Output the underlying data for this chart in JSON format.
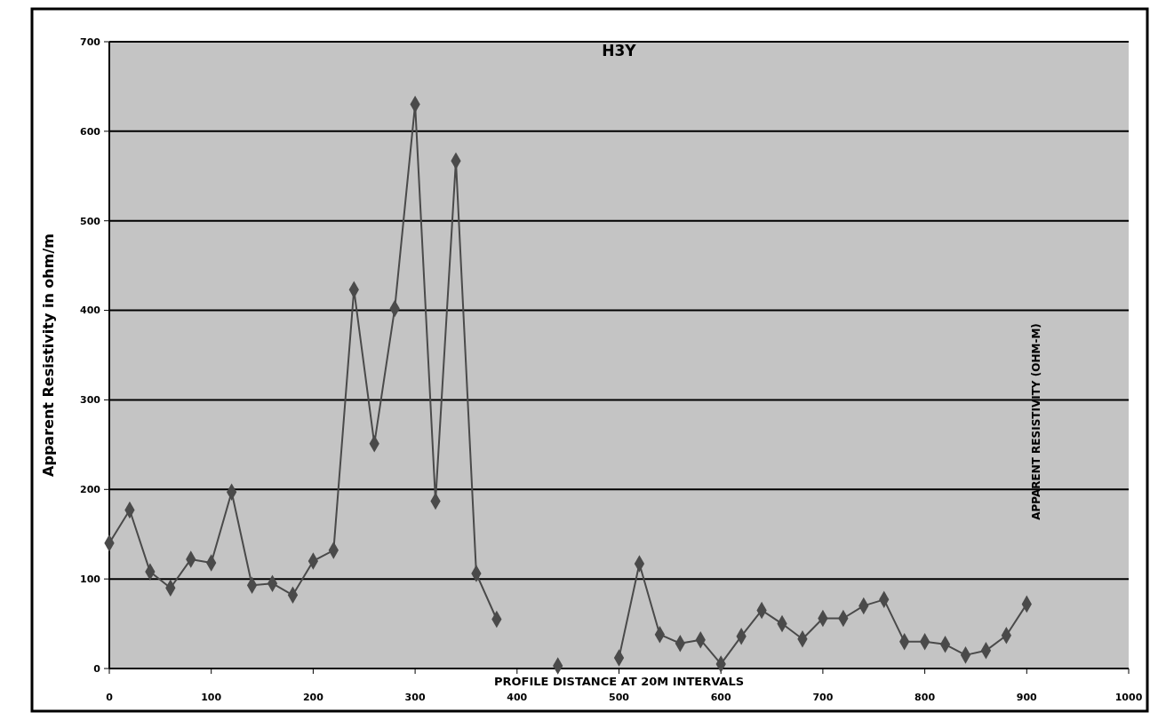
{
  "chart_data": {
    "type": "line",
    "title": "H3Y",
    "xlabel": "PROFILE DISTANCE AT 20M INTERVALS",
    "ylabel": "Apparent Resistivity in ohm/m",
    "annotations": [
      "APPARENT RESISTIVITY (OHM-M)"
    ],
    "x": [
      0,
      20,
      40,
      60,
      80,
      100,
      120,
      140,
      160,
      180,
      200,
      220,
      240,
      260,
      280,
      300,
      320,
      340,
      360,
      380,
      400,
      420,
      440,
      460,
      480,
      500,
      520,
      540,
      560,
      580,
      600,
      620,
      640,
      660,
      680,
      700,
      720,
      740,
      760,
      780,
      800,
      820,
      840,
      860,
      880,
      900
    ],
    "series": [
      {
        "color": "#4a4a4a",
        "values": [
          140,
          177,
          108,
          90,
          122,
          118,
          197,
          93,
          95,
          82,
          120,
          132,
          423,
          251,
          402,
          630,
          187,
          567,
          106,
          55,
          null,
          null,
          3,
          null,
          null,
          12,
          117,
          38,
          28,
          32,
          5,
          36,
          65,
          50,
          33,
          56,
          56,
          70,
          77,
          30,
          30,
          27,
          15,
          20,
          37,
          72
        ]
      }
    ],
    "xlim": [
      0,
      1000
    ],
    "xticks": [
      0,
      100,
      200,
      300,
      400,
      500,
      600,
      700,
      800,
      900,
      1000
    ],
    "ylim": [
      0,
      700
    ],
    "yticks": [
      0,
      100,
      200,
      300,
      400,
      500,
      600,
      700
    ],
    "grid": "y",
    "marker": "diamond",
    "line_style": "solid"
  }
}
